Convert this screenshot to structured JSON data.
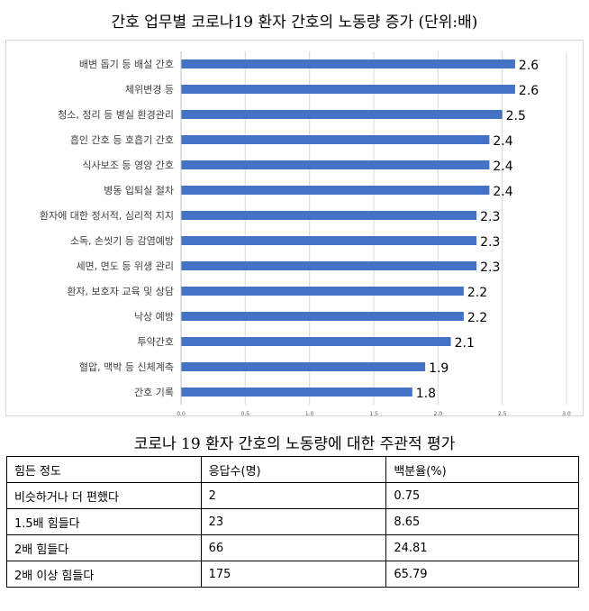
{
  "chart_data": {
    "type": "bar",
    "orientation": "horizontal",
    "title": "간호 업무별 코로나19 환자 간호의 노동량 증가 (단위:배)",
    "categories": [
      "배변 돕기 등 배설 간호",
      "체위변경 등",
      "청소, 정리 등 병실 환경관리",
      "흡인 간호 등 호흡기 간호",
      "식사보조 등 영양 간호",
      "병동 입퇴실 절차",
      "환자에 대한 정서적, 심리적 지지",
      "소독, 손씻기 등 감염예방",
      "세면, 면도 등 위생 관리",
      "환자, 보호자 교육 및 상담",
      "낙상 예방",
      "투약간호",
      "혈압, 맥박 등 신체계측",
      "간호 기록"
    ],
    "values": [
      2.6,
      2.6,
      2.5,
      2.4,
      2.4,
      2.4,
      2.3,
      2.3,
      2.3,
      2.2,
      2.2,
      2.1,
      1.9,
      1.8
    ],
    "value_labels": [
      "2.6",
      "2.6",
      "2.5",
      "2.4",
      "2.4",
      "2.4",
      "2.3",
      "2.3",
      "2.3",
      "2.2",
      "2.2",
      "2.1",
      "1.9",
      "1.8"
    ],
    "xlim": [
      0,
      3.0
    ],
    "xticks": [
      0,
      0.5,
      1.0,
      1.5,
      2.0,
      2.5,
      3.0
    ],
    "xtick_labels": [
      "0.0",
      "0.5",
      "1.0",
      "1.5",
      "2.0",
      "2.5",
      "3.0"
    ],
    "bar_color": "#4472c4",
    "grid": true,
    "legend": "none"
  },
  "table": {
    "title": "코로나 19 환자 간호의 노동량에 대한 주관적 평가",
    "headers": [
      "힘든 정도",
      "응답수(명)",
      "백분율(%)"
    ],
    "rows": [
      [
        "비슷하거나 더 편했다",
        "2",
        "0.75"
      ],
      [
        "1.5배 힘들다",
        "23",
        "8.65"
      ],
      [
        "2배 힘들다",
        "66",
        "24.81"
      ],
      [
        "2배 이상 힘들다",
        "175",
        "65.79"
      ]
    ]
  }
}
